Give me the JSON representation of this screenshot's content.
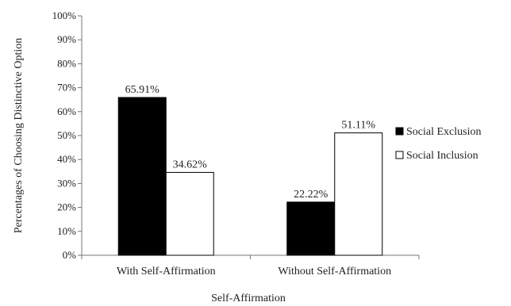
{
  "chart_data": {
    "type": "bar",
    "categories": [
      "With Self-Affirmation",
      "Without Self-Affirmation"
    ],
    "series": [
      {
        "name": "Social Exclusion",
        "values": [
          65.91,
          22.22
        ],
        "labels": [
          "65.91%",
          "22.22%"
        ],
        "color": "#000000"
      },
      {
        "name": "Social Inclusion",
        "values": [
          34.62,
          51.11
        ],
        "labels": [
          "34.62%",
          "51.11%"
        ],
        "color": "#ffffff"
      }
    ],
    "xlabel": "Self-Affirmation",
    "ylabel": "Percentages of Choosing Distinctive Option",
    "ylim": [
      0,
      100
    ],
    "yticks": [
      0,
      10,
      20,
      30,
      40,
      50,
      60,
      70,
      80,
      90,
      100
    ],
    "ytick_labels": [
      "0%",
      "10%",
      "20%",
      "30%",
      "40%",
      "50%",
      "60%",
      "70%",
      "80%",
      "90%",
      "100%"
    ],
    "grid": false,
    "legend_position": "right"
  }
}
